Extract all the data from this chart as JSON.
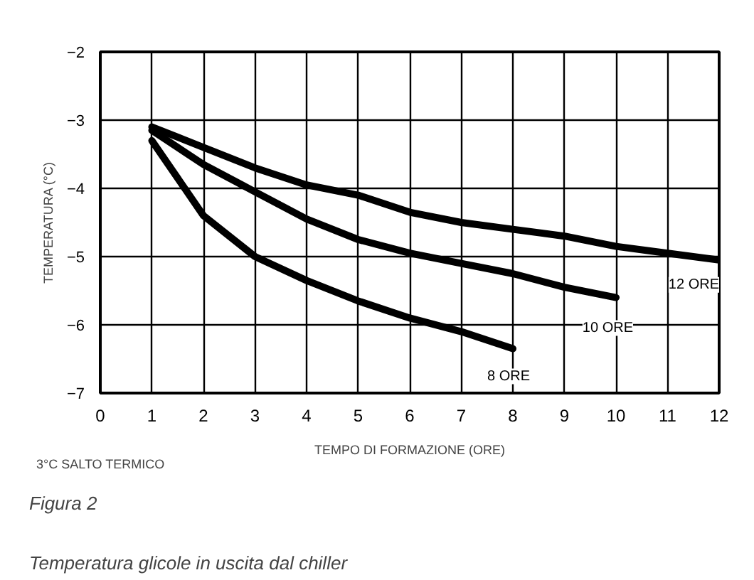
{
  "chart_data": {
    "type": "line",
    "title": "Figura 2",
    "subtitle": "Temperatura glicole in uscita dal chiller",
    "xlabel": "TEMPO DI FORMAZIONE (ORE)",
    "ylabel": "TEMPERATURA (°C)",
    "annotations": [
      "3°C SALTO TERMICO"
    ],
    "x": [
      1,
      2,
      3,
      4,
      5,
      6,
      7,
      8,
      9,
      10,
      11,
      12
    ],
    "series": [
      {
        "name": "12 ORE",
        "color": "#000000",
        "values": [
          -3.1,
          -3.4,
          -3.7,
          -3.95,
          -4.1,
          -4.35,
          -4.5,
          -4.6,
          -4.7,
          -4.85,
          -4.95,
          -5.05
        ]
      },
      {
        "name": "10 ORE",
        "color": "#000000",
        "values": [
          -3.15,
          -3.65,
          -4.05,
          -4.45,
          -4.75,
          -4.95,
          -5.1,
          -5.25,
          -5.45,
          -5.6,
          null,
          null
        ]
      },
      {
        "name": "8 ORE",
        "color": "#000000",
        "values": [
          -3.3,
          -4.4,
          -5.0,
          -5.35,
          -5.65,
          -5.9,
          -6.1,
          -6.35,
          null,
          null,
          null,
          null
        ]
      }
    ],
    "xlim": [
      0,
      12
    ],
    "ylim": [
      -7,
      -2
    ],
    "xticks": [
      0,
      1,
      2,
      3,
      4,
      5,
      6,
      7,
      8,
      9,
      10,
      11,
      12
    ],
    "yticks": [
      -7,
      -6,
      -5,
      -4,
      -3,
      -2
    ],
    "grid": true,
    "marker": "none",
    "line_style": "solid"
  }
}
